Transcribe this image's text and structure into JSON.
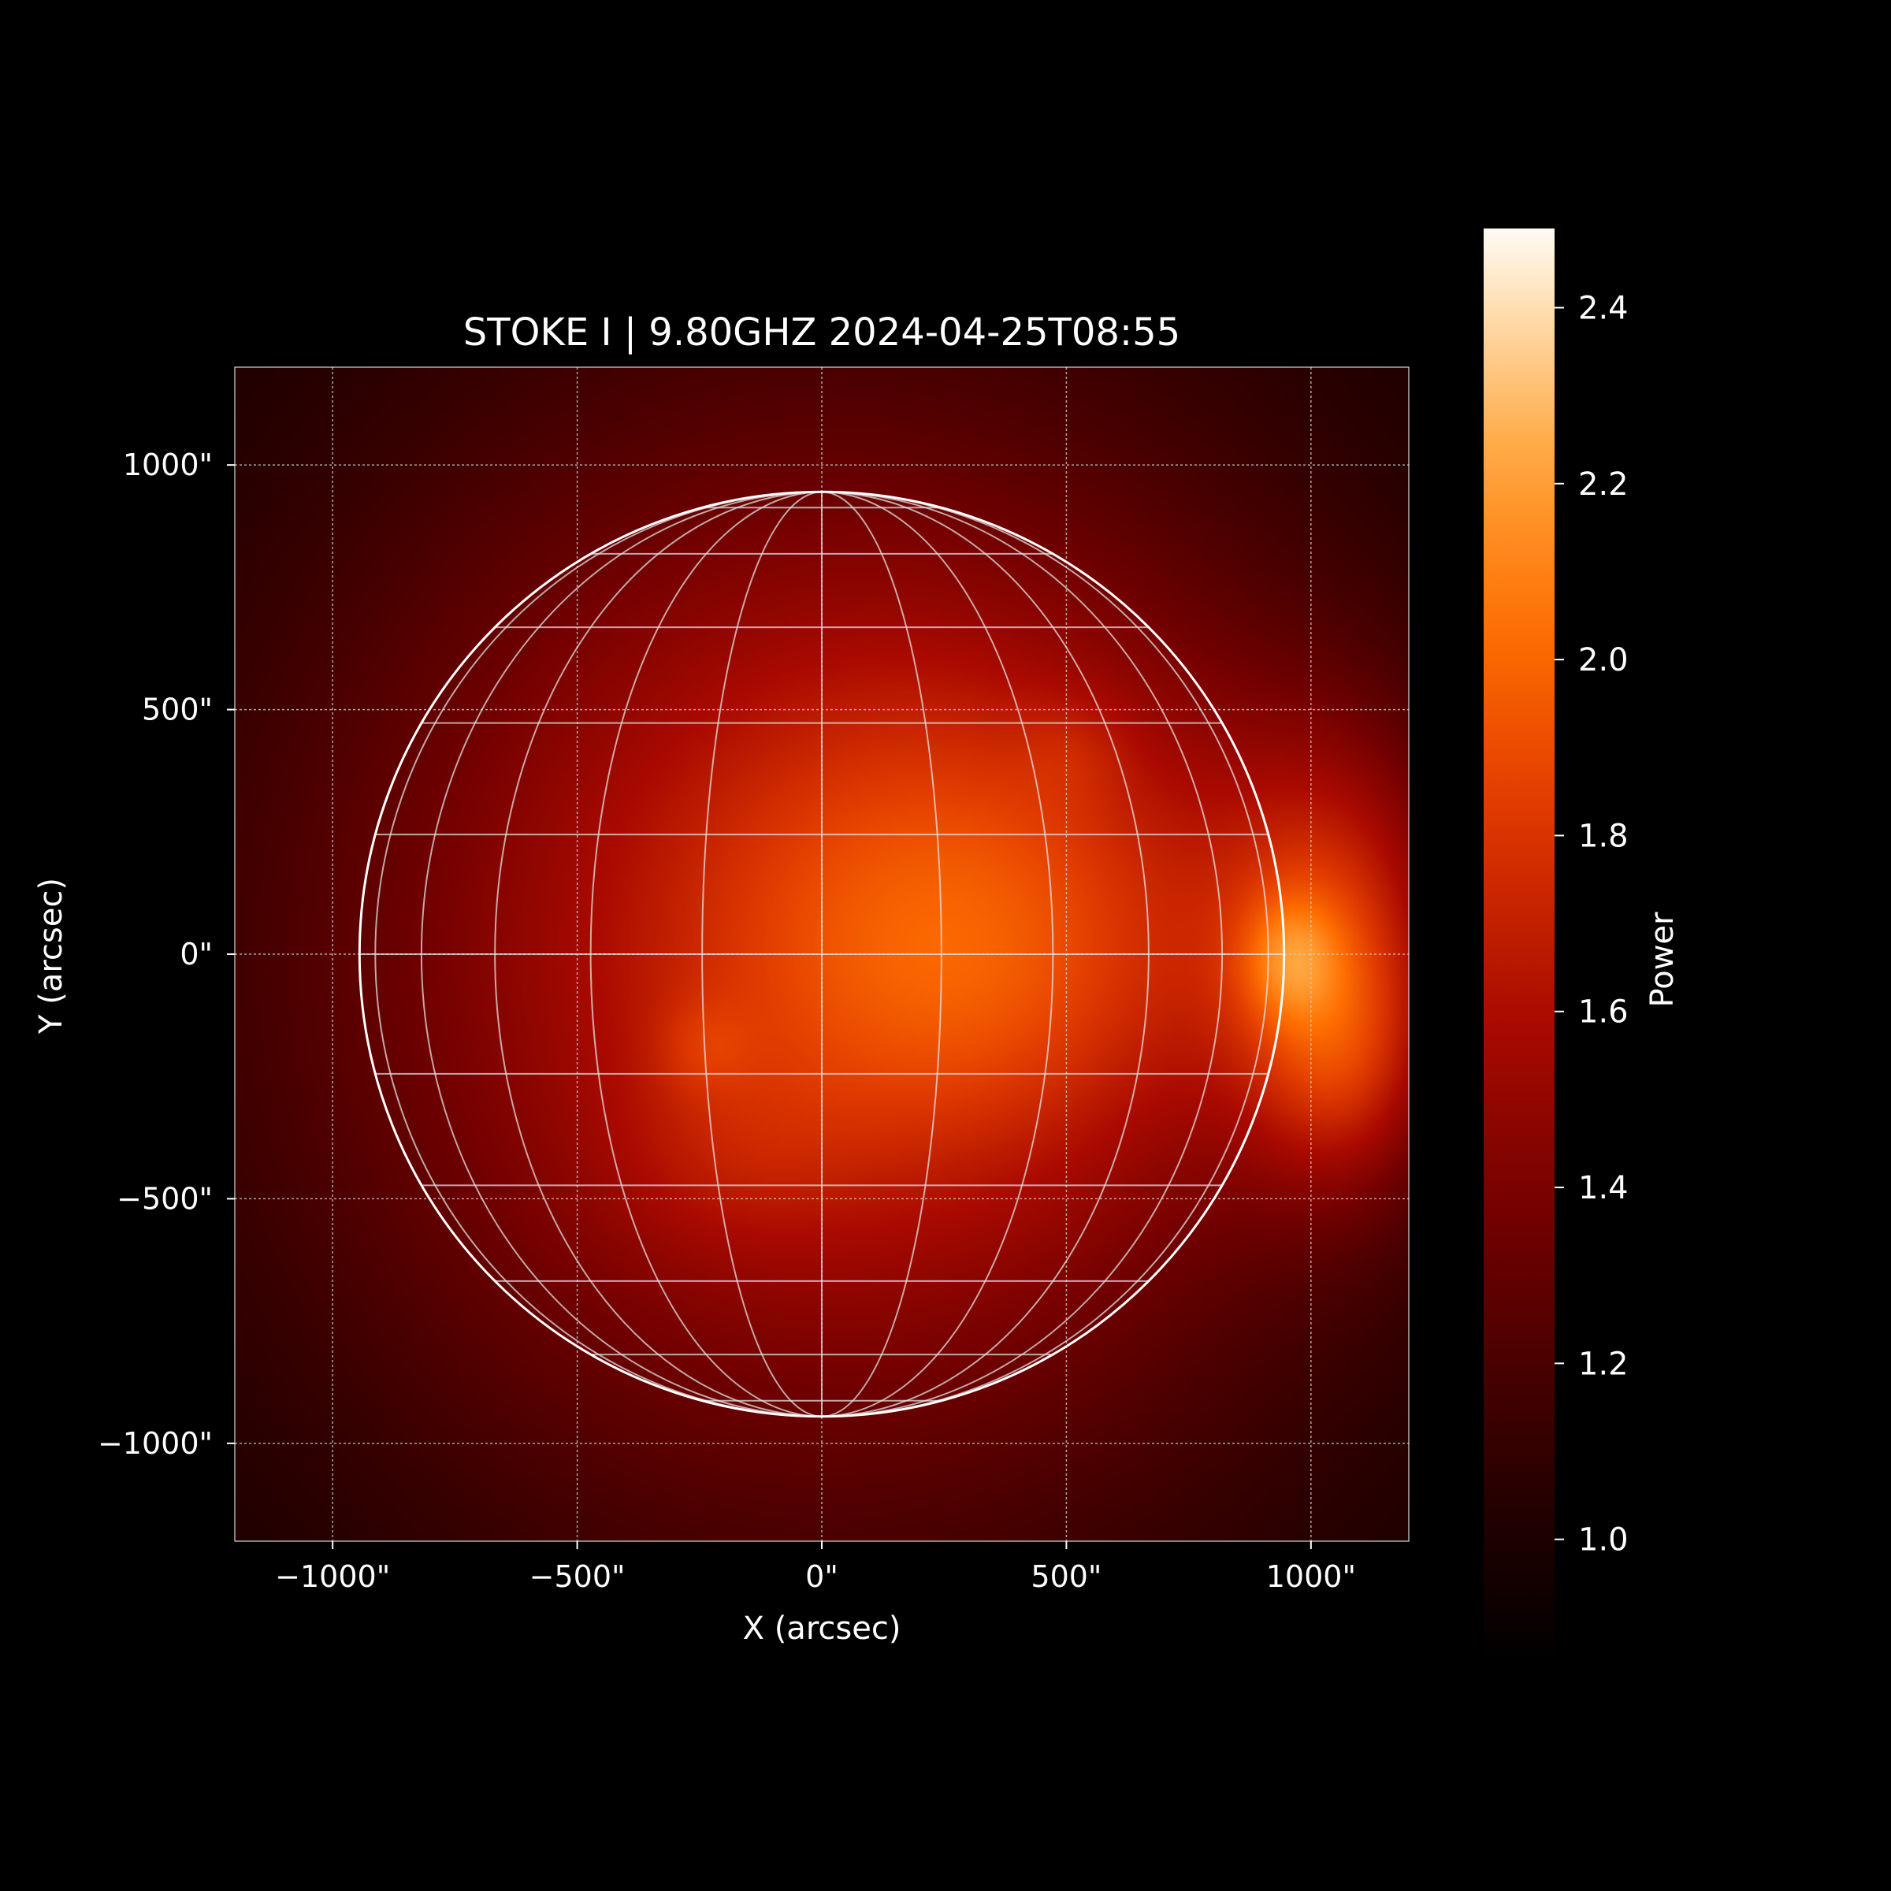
{
  "chart_data": {
    "type": "heatmap",
    "title": "STOKE I | 9.80GHZ 2024-04-25T08:55",
    "xlabel": "X (arcsec)",
    "ylabel": "Y (arcsec)",
    "xlim": [
      -1200,
      1200
    ],
    "ylim": [
      -1200,
      1200
    ],
    "x_ticks": [
      -1000,
      -500,
      0,
      500,
      1000
    ],
    "y_ticks": [
      -1000,
      -500,
      0,
      500,
      1000
    ],
    "x_tick_labels": [
      "−1000\"",
      "−500\"",
      "0\"",
      "500\"",
      "1000\""
    ],
    "y_tick_labels": [
      "−1000\"",
      "−500\"",
      "0\"",
      "500\"",
      "1000\""
    ],
    "grid": true,
    "solar_disk_radius_arcsec": 945,
    "heliographic_grid_step_deg": 15,
    "colormap": "sdoaia304",
    "colorbar": {
      "label": "Power",
      "range": [
        0.86,
        2.49
      ],
      "ticks": [
        1.0,
        1.2,
        1.4,
        1.6,
        1.8,
        2.0,
        2.2,
        2.4
      ],
      "tick_labels": [
        "1.0",
        "1.2",
        "1.4",
        "1.6",
        "1.8",
        "2.0",
        "2.2",
        "2.4"
      ],
      "placement": "right"
    },
    "background_level": 0.95,
    "sources": [
      {
        "x": 0,
        "y": 0,
        "sx": 760,
        "sy": 820,
        "power": 0.72
      },
      {
        "x": 380,
        "y": 100,
        "sx": 420,
        "sy": 380,
        "power": 0.3
      },
      {
        "x": 1050,
        "y": 0,
        "sx": 170,
        "sy": 300,
        "power": 0.55
      },
      {
        "x": 960,
        "y": -10,
        "sx": 70,
        "sy": 90,
        "power": 0.3
      },
      {
        "x": 1070,
        "y": -240,
        "sx": 120,
        "sy": 170,
        "power": 0.22
      },
      {
        "x": -240,
        "y": -190,
        "sx": 70,
        "sy": 70,
        "power": 0.12
      },
      {
        "x": 520,
        "y": 420,
        "sx": 80,
        "sy": 80,
        "power": 0.08
      },
      {
        "x": -200,
        "y": -420,
        "sx": 180,
        "sy": 140,
        "power": 0.1
      },
      {
        "x": 300,
        "y": -60,
        "sx": 300,
        "sy": 240,
        "power": 0.1
      }
    ],
    "colors": {
      "background": "#000000",
      "grid": "#cccccc",
      "limb": "#ffffff"
    }
  }
}
